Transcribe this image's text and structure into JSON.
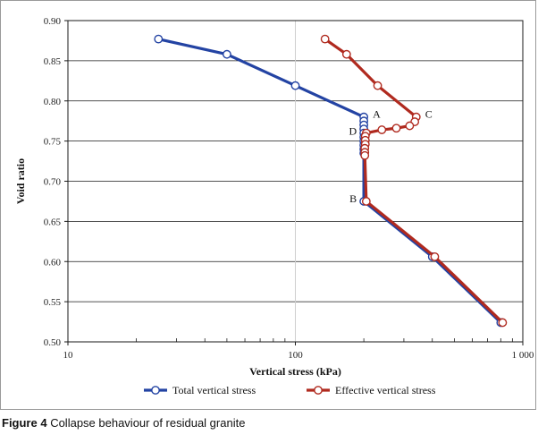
{
  "chart_data": {
    "type": "line",
    "title": "",
    "xlabel": "Vertical stress (kPa)",
    "ylabel": "Void ratio",
    "xscale": "log",
    "xlim": [
      10,
      1000
    ],
    "ylim": [
      0.5,
      0.9
    ],
    "x_ticks": [
      10,
      100,
      1000
    ],
    "x_tick_labels": [
      "10",
      "100",
      "1 000"
    ],
    "y_ticks": [
      0.5,
      0.55,
      0.6,
      0.65,
      0.7,
      0.75,
      0.8,
      0.85,
      0.9
    ],
    "y_tick_labels": [
      "0.50",
      "0.55",
      "0.60",
      "0.65",
      "0.70",
      "0.75",
      "0.80",
      "0.85",
      "0.90"
    ],
    "grid": "horizontal",
    "legend_position": "bottom",
    "series": [
      {
        "name": "Total vertical stress",
        "color": "#2343a3",
        "points": [
          [
            25,
            0.877
          ],
          [
            50,
            0.858
          ],
          [
            100,
            0.819
          ],
          [
            200,
            0.78
          ],
          [
            200,
            0.775
          ],
          [
            200,
            0.77
          ],
          [
            200,
            0.765
          ],
          [
            200,
            0.76
          ],
          [
            200,
            0.755
          ],
          [
            200,
            0.75
          ],
          [
            200,
            0.745
          ],
          [
            200,
            0.74
          ],
          [
            200,
            0.735
          ],
          [
            200,
            0.675
          ],
          [
            400,
            0.606
          ],
          [
            800,
            0.524
          ]
        ]
      },
      {
        "name": "Effective vertical stress",
        "color": "#b02a1f",
        "points": [
          [
            135,
            0.877
          ],
          [
            168,
            0.858
          ],
          [
            230,
            0.819
          ],
          [
            340,
            0.78
          ],
          [
            335,
            0.774
          ],
          [
            318,
            0.769
          ],
          [
            278,
            0.766
          ],
          [
            240,
            0.764
          ],
          [
            205,
            0.76
          ],
          [
            203,
            0.756
          ],
          [
            203,
            0.751
          ],
          [
            203,
            0.746
          ],
          [
            202,
            0.741
          ],
          [
            202,
            0.736
          ],
          [
            202,
            0.732
          ],
          [
            205,
            0.675
          ],
          [
            410,
            0.606
          ],
          [
            815,
            0.524
          ]
        ]
      }
    ],
    "annotations": [
      {
        "label": "A",
        "x": 200,
        "y": 0.78,
        "anchor": "right"
      },
      {
        "label": "C",
        "x": 340,
        "y": 0.78,
        "anchor": "right"
      },
      {
        "label": "D",
        "x": 200,
        "y": 0.759,
        "anchor": "left"
      },
      {
        "label": "B",
        "x": 200,
        "y": 0.675,
        "anchor": "left"
      }
    ]
  },
  "figure": {
    "caption_number": "Figure 4",
    "caption_text": " Collapse behaviour of residual granite"
  }
}
